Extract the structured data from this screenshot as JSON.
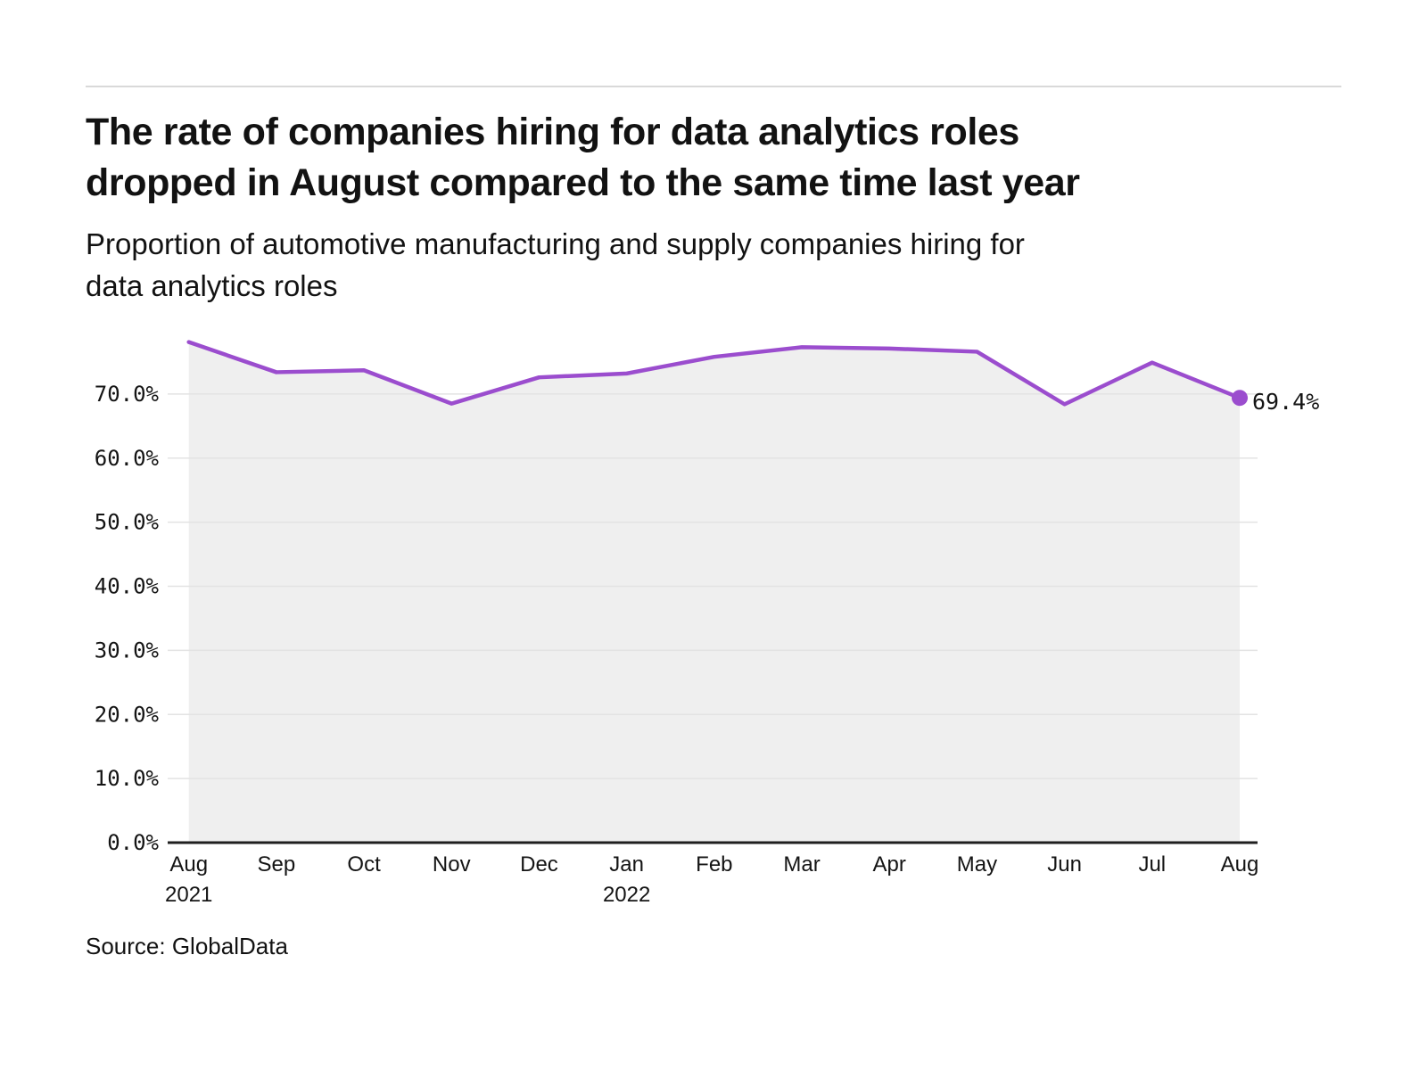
{
  "header": {
    "title_lines": [
      "The rate of companies hiring for data analytics roles",
      "dropped in August compared to the same time last year"
    ],
    "subtitle_lines": [
      "Proportion of automotive manufacturing and supply companies hiring for",
      "data analytics roles"
    ]
  },
  "source_note": "Source: GlobalData",
  "colors": {
    "line": "#9b4dce",
    "area_fill": "#efefef",
    "grid": "#e3e3e3",
    "axis": "#1f1f1f",
    "text": "#141414",
    "rule": "#d9d9d9"
  },
  "chart_data": {
    "type": "area",
    "title": "The rate of companies hiring for data analytics roles dropped in August compared to the same time last year",
    "subtitle": "Proportion of automotive manufacturing and supply companies hiring for data analytics roles",
    "categories": [
      "Aug",
      "Sep",
      "Oct",
      "Nov",
      "Dec",
      "Jan",
      "Feb",
      "Mar",
      "Apr",
      "May",
      "Jun",
      "Jul",
      "Aug"
    ],
    "category_sublabels": [
      {
        "index": 0,
        "label": "2021"
      },
      {
        "index": 5,
        "label": "2022"
      }
    ],
    "values": [
      78.1,
      73.4,
      73.7,
      68.5,
      72.6,
      73.2,
      75.8,
      77.3,
      77.1,
      76.6,
      68.4,
      74.9,
      69.4
    ],
    "unit": "%",
    "ylim": [
      0,
      80
    ],
    "yticks": [
      0,
      10,
      20,
      30,
      40,
      50,
      60,
      70
    ],
    "ytick_labels": [
      "0.0%",
      "10.0%",
      "20.0%",
      "30.0%",
      "40.0%",
      "50.0%",
      "60.0%",
      "70.0%"
    ],
    "grid": true,
    "legend": "none",
    "end_point_label": "69.4%",
    "xlabel": "",
    "ylabel": ""
  }
}
